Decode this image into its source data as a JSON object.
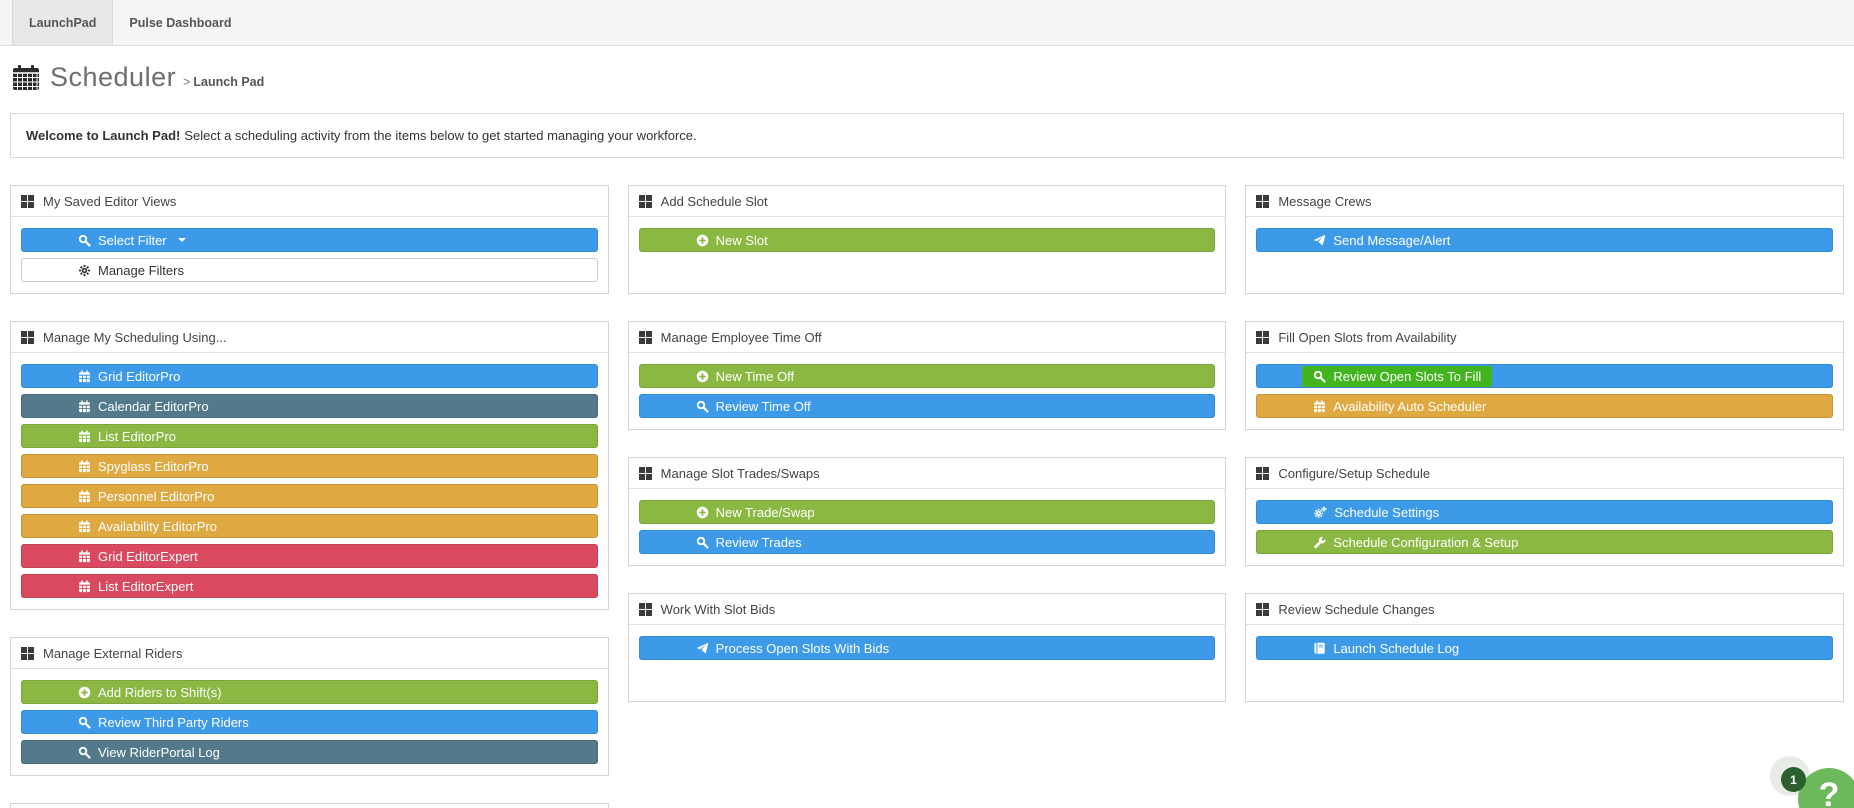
{
  "tabs": [
    {
      "label": "LaunchPad",
      "active": true
    },
    {
      "label": "Pulse Dashboard",
      "active": false
    }
  ],
  "header": {
    "title": "Scheduler",
    "separator": ">",
    "breadcrumb": "Launch Pad"
  },
  "welcome": {
    "bold": "Welcome to Launch Pad!",
    "text": "Select a scheduling activity from the items below to get started managing your workforce."
  },
  "colors": {
    "blue": "#3d9ae8",
    "green": "#8ab843",
    "slate": "#53798a",
    "gold": "#dfa942",
    "red": "#d9495f",
    "white": "#ffffff",
    "highlight_green": "#42b41d",
    "help_green": "#6cb85c",
    "badge_green": "#2c5f2e"
  },
  "columns": [
    [
      {
        "title": "My Saved Editor Views",
        "buttons": [
          {
            "label": "Select Filter",
            "icon": "search",
            "style": "blue",
            "caret": true
          },
          {
            "label": "Manage Filters",
            "icon": "gear",
            "style": "white"
          }
        ]
      },
      {
        "title": "Manage My Scheduling Using...",
        "buttons": [
          {
            "label": "Grid EditorPro",
            "icon": "calendar",
            "style": "blue"
          },
          {
            "label": "Calendar EditorPro",
            "icon": "calendar",
            "style": "slate"
          },
          {
            "label": "List EditorPro",
            "icon": "calendar",
            "style": "green"
          },
          {
            "label": "Spyglass EditorPro",
            "icon": "calendar",
            "style": "gold"
          },
          {
            "label": "Personnel EditorPro",
            "icon": "calendar",
            "style": "gold"
          },
          {
            "label": "Availability EditorPro",
            "icon": "calendar",
            "style": "gold"
          },
          {
            "label": "Grid EditorExpert",
            "icon": "calendar",
            "style": "red"
          },
          {
            "label": "List EditorExpert",
            "icon": "calendar",
            "style": "red"
          }
        ]
      },
      {
        "title": "Manage External Riders",
        "buttons": [
          {
            "label": "Add Riders to Shift(s)",
            "icon": "plus-circle",
            "style": "green"
          },
          {
            "label": "Review Third Party Riders",
            "icon": "search",
            "style": "blue"
          },
          {
            "label": "View RiderPortal Log",
            "icon": "search",
            "style": "slate"
          }
        ]
      },
      {
        "partial": true,
        "title": "",
        "buttons": []
      }
    ],
    [
      {
        "title": "Add Schedule Slot",
        "spacer": true,
        "buttons": [
          {
            "label": "New Slot",
            "icon": "plus-circle",
            "style": "green"
          }
        ]
      },
      {
        "title": "Manage Employee Time Off",
        "buttons": [
          {
            "label": "New Time Off",
            "icon": "plus-circle",
            "style": "green"
          },
          {
            "label": "Review Time Off",
            "icon": "search",
            "style": "blue"
          }
        ]
      },
      {
        "title": "Manage Slot Trades/Swaps",
        "buttons": [
          {
            "label": "New Trade/Swap",
            "icon": "plus-circle",
            "style": "green"
          },
          {
            "label": "Review Trades",
            "icon": "search",
            "style": "blue"
          }
        ]
      },
      {
        "title": "Work With Slot Bids",
        "spacer": true,
        "buttons": [
          {
            "label": "Process Open Slots With Bids",
            "icon": "paper-plane",
            "style": "blue"
          }
        ]
      }
    ],
    [
      {
        "title": "Message Crews",
        "spacer": true,
        "buttons": [
          {
            "label": "Send Message/Alert",
            "icon": "paper-plane",
            "style": "blue"
          }
        ]
      },
      {
        "title": "Fill Open Slots from Availability",
        "buttons": [
          {
            "label": "Review Open Slots To Fill",
            "icon": "search",
            "style": "blue",
            "highlight": true
          },
          {
            "label": "Availability Auto Scheduler",
            "icon": "calendar",
            "style": "gold"
          }
        ]
      },
      {
        "title": "Configure/Setup Schedule",
        "buttons": [
          {
            "label": "Schedule Settings",
            "icon": "cogs",
            "style": "blue"
          },
          {
            "label": "Schedule Configuration & Setup",
            "icon": "wrench",
            "style": "green"
          }
        ]
      },
      {
        "title": "Review Schedule Changes",
        "spacer": true,
        "buttons": [
          {
            "label": "Launch Schedule Log",
            "icon": "book",
            "style": "blue"
          }
        ]
      }
    ]
  ],
  "help": {
    "badge_count": "1",
    "question_mark": "?"
  }
}
